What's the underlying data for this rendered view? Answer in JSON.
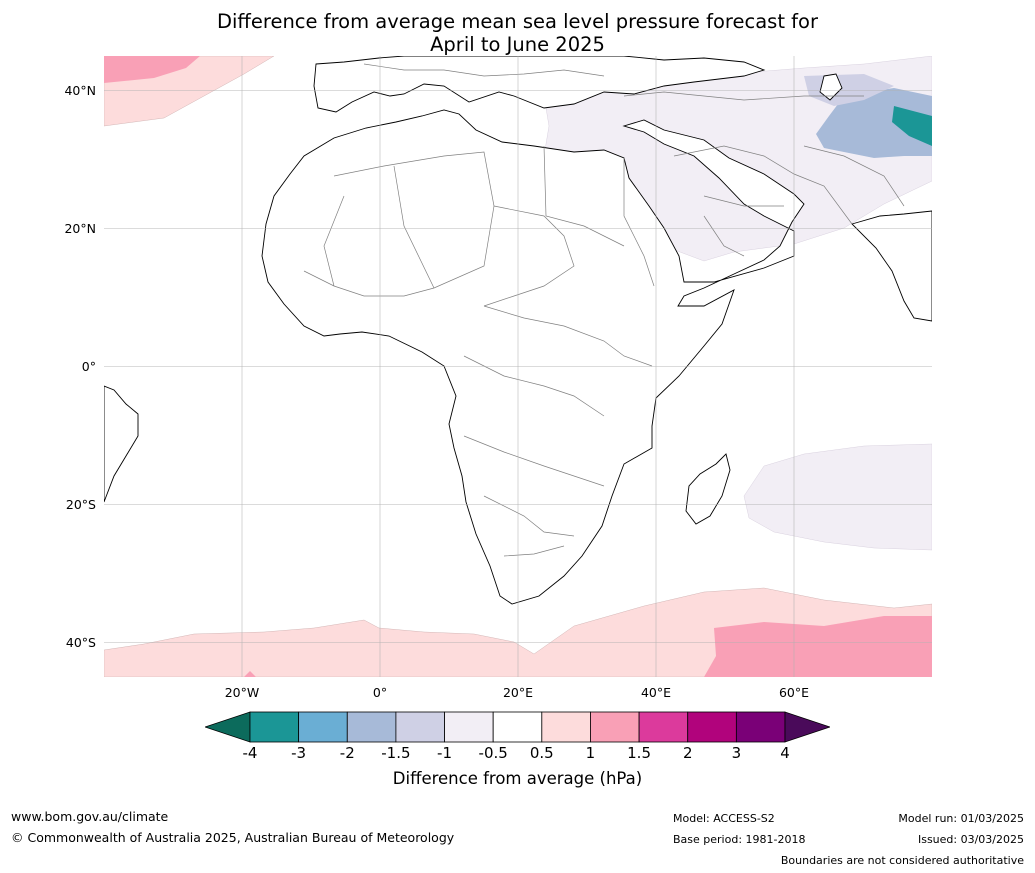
{
  "title_line1": "Difference from average mean sea level pressure forecast for",
  "title_line2": "April to June 2025",
  "lat_ticks": [
    {
      "label": "40°N",
      "lat": 40
    },
    {
      "label": "20°N",
      "lat": 20
    },
    {
      "label": "0°",
      "lat": 0
    },
    {
      "label": "20°S",
      "lat": -20
    },
    {
      "label": "40°S",
      "lat": -40
    }
  ],
  "lon_ticks": [
    {
      "label": "20°W",
      "lon": -20
    },
    {
      "label": "0°",
      "lon": 0
    },
    {
      "label": "20°E",
      "lon": 20
    },
    {
      "label": "40°E",
      "lon": 40
    },
    {
      "label": "60°E",
      "lon": 60
    }
  ],
  "map_extent": {
    "lon_min": -40,
    "lon_max": 80,
    "lat_min": -45,
    "lat_max": 45
  },
  "colorbar": {
    "ticks": [
      "-4",
      "-3",
      "-2",
      "-1.5",
      "-1",
      "-0.5",
      "0.5",
      "1",
      "1.5",
      "2",
      "3",
      "4"
    ],
    "under_color": "#0c6b5c",
    "over_color": "#4a0a5a",
    "colors": [
      "#1b9696",
      "#6aaed4",
      "#a7bad8",
      "#cfd0e5",
      "#f2eef5",
      "#ffffff",
      "#fddcdc",
      "#f9a0b6",
      "#dc3a9c",
      "#b1037c",
      "#7a0077"
    ],
    "label": "Difference from average (hPa)"
  },
  "footer": {
    "website": "www.bom.gov.au/climate",
    "copyright": "© Commonwealth of Australia 2025, Australian Bureau of Meteorology",
    "model": "Model: ACCESS-S2",
    "base_period": "Base period: 1981-2018",
    "model_run": "Model run: 01/03/2025",
    "issued": "Issued: 03/03/2025",
    "disclaimer": "Boundaries are not considered authoritative"
  }
}
